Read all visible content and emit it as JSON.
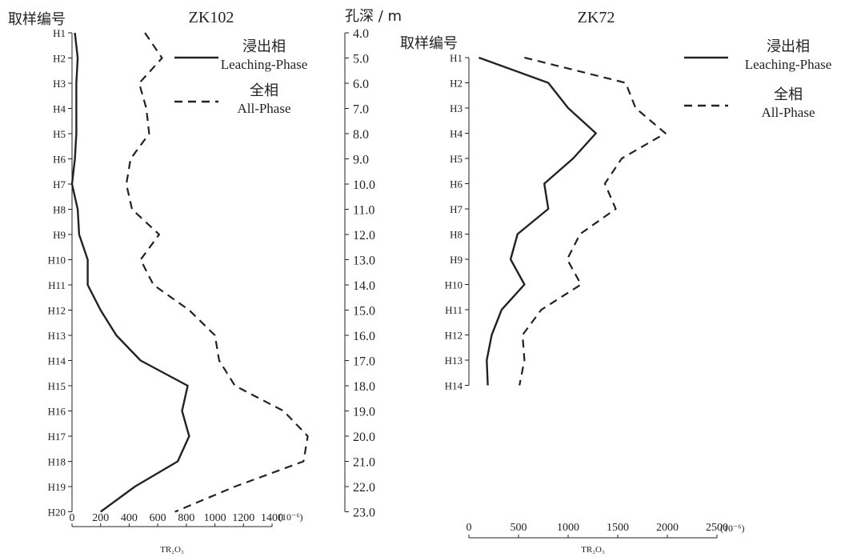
{
  "colors": {
    "ink": "#222222",
    "background": "#ffffff"
  },
  "depth_axis": {
    "label": "孔深 / m",
    "ticks": [
      "4.0",
      "5.0",
      "6.0",
      "7.0",
      "8.0",
      "9.0",
      "10.0",
      "11.0",
      "12.0",
      "13.0",
      "14.0",
      "15.0",
      "16.0",
      "17.0",
      "18.0",
      "19.0",
      "20.0",
      "21.0",
      "22.0",
      "23.0"
    ]
  },
  "chart_data": [
    {
      "type": "line",
      "title": "ZK102",
      "sample_axis_label": "取样编号",
      "samples": [
        "H1",
        "H2",
        "H3",
        "H4",
        "H5",
        "H6",
        "H7",
        "H8",
        "H9",
        "H10",
        "H11",
        "H12",
        "H13",
        "H14",
        "H15",
        "H16",
        "H17",
        "H18",
        "H19",
        "H20"
      ],
      "xlim": [
        0,
        1400
      ],
      "x_ticks": [
        "0",
        "200",
        "400",
        "600",
        "800",
        "1000",
        "1200",
        "1400"
      ],
      "unit": "(10⁻⁶)",
      "xlabel": "TR₂O₃",
      "legend": "top-right",
      "series": [
        {
          "name_cn": "浸出相",
          "name": "Leaching-Phase",
          "style": "solid",
          "values": [
            20,
            40,
            30,
            30,
            30,
            20,
            0,
            40,
            50,
            110,
            110,
            200,
            310,
            480,
            810,
            770,
            820,
            740,
            440,
            200
          ]
        },
        {
          "name_cn": "全相",
          "name": "All-Phase",
          "style": "dashed",
          "values": [
            510,
            630,
            470,
            520,
            540,
            410,
            380,
            420,
            610,
            480,
            570,
            820,
            1000,
            1030,
            1140,
            1480,
            1650,
            1620,
            1140,
            720
          ]
        }
      ]
    },
    {
      "type": "line",
      "title": "ZK72",
      "sample_axis_label": "取样编号",
      "samples": [
        "H1",
        "H2",
        "H3",
        "H4",
        "H5",
        "H6",
        "H7",
        "H8",
        "H9",
        "H10",
        "H11",
        "H12",
        "H13",
        "H14"
      ],
      "xlim": [
        0,
        2500
      ],
      "x_ticks": [
        "0",
        "500",
        "1000",
        "1500",
        "2000",
        "2500"
      ],
      "unit": "(10⁻⁶)",
      "xlabel": "TR₂O₃",
      "legend": "top-right",
      "series": [
        {
          "name_cn": "浸出相",
          "name": "Leaching-Phase",
          "style": "solid",
          "values": [
            100,
            800,
            1000,
            1280,
            1050,
            760,
            800,
            490,
            420,
            560,
            330,
            230,
            180,
            190
          ]
        },
        {
          "name_cn": "全相",
          "name": "All-Phase",
          "style": "dashed",
          "values": [
            560,
            1580,
            1680,
            1980,
            1540,
            1370,
            1480,
            1120,
            990,
            1130,
            730,
            540,
            560,
            510
          ]
        }
      ]
    }
  ]
}
